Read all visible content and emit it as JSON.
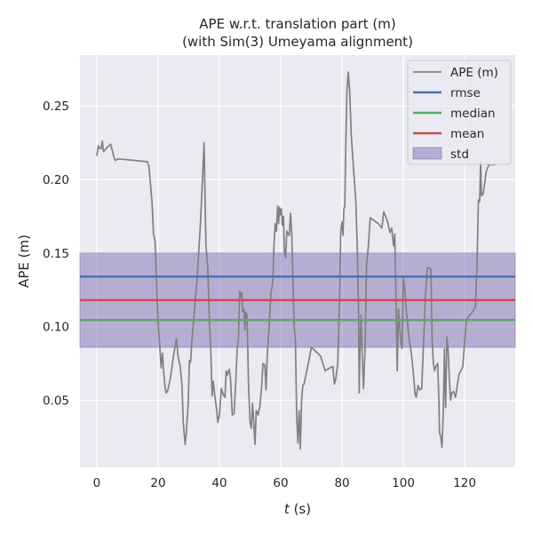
{
  "chart_data": {
    "type": "line",
    "title_line1": "APE w.r.t. translation part (m)",
    "title_line2": "(with Sim(3) Umeyama alignment)",
    "xlabel_italic": "t",
    "xlabel_rest": " (s)",
    "ylabel": "APE (m)",
    "xlim": [
      -5.5,
      136.5
    ],
    "ylim": [
      0.0045,
      0.2845
    ],
    "x_ticks": [
      0,
      20,
      40,
      60,
      80,
      100,
      120
    ],
    "x_tick_labels": [
      "0",
      "20",
      "40",
      "60",
      "80",
      "100",
      "120"
    ],
    "y_ticks": [
      0.05,
      0.1,
      0.15,
      0.2,
      0.25
    ],
    "y_tick_labels": [
      "0.05",
      "0.10",
      "0.15",
      "0.20",
      "0.25"
    ],
    "grid": true,
    "legend_position": "top-right",
    "legend": [
      {
        "label": "APE (m)",
        "kind": "line",
        "color": "#808080"
      },
      {
        "label": "rmse",
        "kind": "line",
        "color": "#4c72b0"
      },
      {
        "label": "median",
        "kind": "line",
        "color": "#55a868"
      },
      {
        "label": "mean",
        "kind": "line",
        "color": "#c44e52"
      },
      {
        "label": "std",
        "kind": "patch",
        "color": "#8172b2"
      }
    ],
    "stats": {
      "rmse": 0.134,
      "median": 0.1045,
      "mean": 0.118,
      "std_low": 0.086,
      "std_high": 0.15
    },
    "series": [
      {
        "name": "APE (m)",
        "color": "#808080",
        "points": [
          [
            0.0,
            0.216
          ],
          [
            0.5,
            0.223
          ],
          [
            1.0,
            0.221
          ],
          [
            1.4,
            0.221
          ],
          [
            1.8,
            0.226
          ],
          [
            2.2,
            0.219
          ],
          [
            3.5,
            0.222
          ],
          [
            4.5,
            0.224
          ],
          [
            5.5,
            0.216
          ],
          [
            6.0,
            0.213
          ],
          [
            7.0,
            0.214
          ],
          [
            12.0,
            0.213
          ],
          [
            16.5,
            0.212
          ],
          [
            17.0,
            0.209
          ],
          [
            18.0,
            0.185
          ],
          [
            18.5,
            0.163
          ],
          [
            19.0,
            0.158
          ],
          [
            19.5,
            0.13
          ],
          [
            20.0,
            0.102
          ],
          [
            20.5,
            0.088
          ],
          [
            21.0,
            0.072
          ],
          [
            21.4,
            0.082
          ],
          [
            21.8,
            0.07
          ],
          [
            22.2,
            0.06
          ],
          [
            22.6,
            0.055
          ],
          [
            23.2,
            0.057
          ],
          [
            24.0,
            0.065
          ],
          [
            25.0,
            0.08
          ],
          [
            26.0,
            0.092
          ],
          [
            26.5,
            0.08
          ],
          [
            27.2,
            0.073
          ],
          [
            27.8,
            0.06
          ],
          [
            28.2,
            0.035
          ],
          [
            28.8,
            0.02
          ],
          [
            29.2,
            0.028
          ],
          [
            29.8,
            0.047
          ],
          [
            30.2,
            0.077
          ],
          [
            30.6,
            0.076
          ],
          [
            31.0,
            0.09
          ],
          [
            31.8,
            0.11
          ],
          [
            32.8,
            0.135
          ],
          [
            33.8,
            0.17
          ],
          [
            34.6,
            0.205
          ],
          [
            35.0,
            0.225
          ],
          [
            35.3,
            0.19
          ],
          [
            35.6,
            0.155
          ],
          [
            36.2,
            0.14
          ],
          [
            36.8,
            0.1
          ],
          [
            37.2,
            0.083
          ],
          [
            37.6,
            0.053
          ],
          [
            38.0,
            0.063
          ],
          [
            38.4,
            0.055
          ],
          [
            39.0,
            0.045
          ],
          [
            39.5,
            0.035
          ],
          [
            40.0,
            0.04
          ],
          [
            40.6,
            0.058
          ],
          [
            41.2,
            0.054
          ],
          [
            41.8,
            0.052
          ],
          [
            42.2,
            0.07
          ],
          [
            42.6,
            0.067
          ],
          [
            43.2,
            0.071
          ],
          [
            43.6,
            0.065
          ],
          [
            44.2,
            0.04
          ],
          [
            44.8,
            0.041
          ],
          [
            45.4,
            0.066
          ],
          [
            45.8,
            0.085
          ],
          [
            46.2,
            0.092
          ],
          [
            46.6,
            0.124
          ],
          [
            47.0,
            0.12
          ],
          [
            47.3,
            0.123
          ],
          [
            47.6,
            0.11
          ],
          [
            48.0,
            0.112
          ],
          [
            48.3,
            0.098
          ],
          [
            48.6,
            0.11
          ],
          [
            49.0,
            0.108
          ],
          [
            49.5,
            0.06
          ],
          [
            50.0,
            0.035
          ],
          [
            50.4,
            0.031
          ],
          [
            50.8,
            0.048
          ],
          [
            51.2,
            0.035
          ],
          [
            51.6,
            0.02
          ],
          [
            52.0,
            0.043
          ],
          [
            52.6,
            0.04
          ],
          [
            53.2,
            0.046
          ],
          [
            53.8,
            0.06
          ],
          [
            54.2,
            0.075
          ],
          [
            54.8,
            0.074
          ],
          [
            55.2,
            0.057
          ],
          [
            55.6,
            0.08
          ],
          [
            56.2,
            0.1
          ],
          [
            56.8,
            0.123
          ],
          [
            57.4,
            0.13
          ],
          [
            57.8,
            0.155
          ],
          [
            58.2,
            0.17
          ],
          [
            58.6,
            0.165
          ],
          [
            59.0,
            0.182
          ],
          [
            59.3,
            0.17
          ],
          [
            59.6,
            0.181
          ],
          [
            59.9,
            0.176
          ],
          [
            60.2,
            0.18
          ],
          [
            60.5,
            0.169
          ],
          [
            60.9,
            0.175
          ],
          [
            61.2,
            0.15
          ],
          [
            61.6,
            0.147
          ],
          [
            62.0,
            0.165
          ],
          [
            62.4,
            0.163
          ],
          [
            62.8,
            0.162
          ],
          [
            63.2,
            0.177
          ],
          [
            63.6,
            0.163
          ],
          [
            64.0,
            0.13
          ],
          [
            64.4,
            0.1
          ],
          [
            64.8,
            0.09
          ],
          [
            65.2,
            0.04
          ],
          [
            65.6,
            0.021
          ],
          [
            66.0,
            0.043
          ],
          [
            66.4,
            0.017
          ],
          [
            66.8,
            0.05
          ],
          [
            67.2,
            0.06
          ],
          [
            67.6,
            0.061
          ],
          [
            68.2,
            0.067
          ],
          [
            69.0,
            0.075
          ],
          [
            70.0,
            0.086
          ],
          [
            71.5,
            0.083
          ],
          [
            73.0,
            0.08
          ],
          [
            74.5,
            0.07
          ],
          [
            76.0,
            0.072
          ],
          [
            77.0,
            0.073
          ],
          [
            77.5,
            0.061
          ],
          [
            78.0,
            0.065
          ],
          [
            78.6,
            0.075
          ],
          [
            79.2,
            0.12
          ],
          [
            79.6,
            0.165
          ],
          [
            80.0,
            0.171
          ],
          [
            80.3,
            0.162
          ],
          [
            80.6,
            0.18
          ],
          [
            80.9,
            0.182
          ],
          [
            81.2,
            0.22
          ],
          [
            81.6,
            0.26
          ],
          [
            82.0,
            0.273
          ],
          [
            82.5,
            0.26
          ],
          [
            83.0,
            0.23
          ],
          [
            84.0,
            0.2
          ],
          [
            84.5,
            0.185
          ],
          [
            85.0,
            0.152
          ],
          [
            85.4,
            0.11
          ],
          [
            85.6,
            0.055
          ],
          [
            85.8,
            0.08
          ],
          [
            86.2,
            0.108
          ],
          [
            86.6,
            0.08
          ],
          [
            87.0,
            0.058
          ],
          [
            87.5,
            0.085
          ],
          [
            88.0,
            0.142
          ],
          [
            88.6,
            0.155
          ],
          [
            89.2,
            0.174
          ],
          [
            90.5,
            0.172
          ],
          [
            91.8,
            0.17
          ],
          [
            93.0,
            0.167
          ],
          [
            93.6,
            0.178
          ],
          [
            94.4,
            0.174
          ],
          [
            95.0,
            0.17
          ],
          [
            95.6,
            0.164
          ],
          [
            96.2,
            0.167
          ],
          [
            96.8,
            0.155
          ],
          [
            97.2,
            0.163
          ],
          [
            97.6,
            0.12
          ],
          [
            98.0,
            0.07
          ],
          [
            98.4,
            0.112
          ],
          [
            98.8,
            0.1
          ],
          [
            99.2,
            0.09
          ],
          [
            99.6,
            0.085
          ],
          [
            100.0,
            0.133
          ],
          [
            100.5,
            0.125
          ],
          [
            101.0,
            0.11
          ],
          [
            101.5,
            0.1
          ],
          [
            102.0,
            0.09
          ],
          [
            102.6,
            0.082
          ],
          [
            103.2,
            0.07
          ],
          [
            103.8,
            0.055
          ],
          [
            104.2,
            0.052
          ],
          [
            104.8,
            0.06
          ],
          [
            105.4,
            0.057
          ],
          [
            106.0,
            0.058
          ],
          [
            106.6,
            0.09
          ],
          [
            107.2,
            0.12
          ],
          [
            107.8,
            0.14
          ],
          [
            108.4,
            0.14
          ],
          [
            109.0,
            0.139
          ],
          [
            109.4,
            0.09
          ],
          [
            109.8,
            0.075
          ],
          [
            110.2,
            0.07
          ],
          [
            110.6,
            0.073
          ],
          [
            111.2,
            0.075
          ],
          [
            111.6,
            0.05
          ],
          [
            111.8,
            0.028
          ],
          [
            112.2,
            0.025
          ],
          [
            112.6,
            0.018
          ],
          [
            113.0,
            0.04
          ],
          [
            113.2,
            0.06
          ],
          [
            113.4,
            0.085
          ],
          [
            113.6,
            0.06
          ],
          [
            113.8,
            0.045
          ],
          [
            114.2,
            0.093
          ],
          [
            114.6,
            0.085
          ],
          [
            115.0,
            0.065
          ],
          [
            115.4,
            0.05
          ],
          [
            115.8,
            0.055
          ],
          [
            116.4,
            0.056
          ],
          [
            117.0,
            0.052
          ],
          [
            117.6,
            0.06
          ],
          [
            118.2,
            0.068
          ],
          [
            118.8,
            0.07
          ],
          [
            119.4,
            0.073
          ],
          [
            120.0,
            0.09
          ],
          [
            120.6,
            0.105
          ],
          [
            122.5,
            0.11
          ],
          [
            123.5,
            0.113
          ],
          [
            124.0,
            0.14
          ],
          [
            124.5,
            0.186
          ],
          [
            124.9,
            0.185
          ],
          [
            125.2,
            0.212
          ],
          [
            125.5,
            0.189
          ],
          [
            126.0,
            0.19
          ],
          [
            126.5,
            0.197
          ],
          [
            127.0,
            0.205
          ],
          [
            127.5,
            0.208
          ],
          [
            128.0,
            0.21
          ],
          [
            129.0,
            0.21
          ],
          [
            130.0,
            0.21
          ]
        ]
      }
    ]
  }
}
